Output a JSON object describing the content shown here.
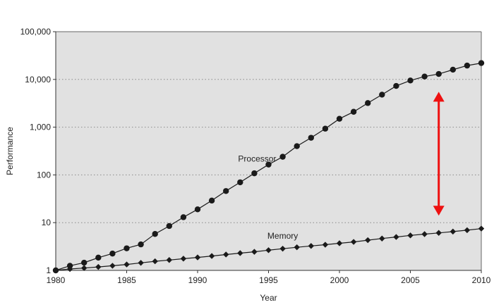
{
  "chart_data": {
    "type": "line",
    "xlabel": "Year",
    "ylabel": "Performance",
    "xlim": [
      1980,
      2010
    ],
    "ylim": [
      1,
      100000
    ],
    "y_scale": "log",
    "x_ticks": [
      "1980",
      "1985",
      "1990",
      "1995",
      "2000",
      "2005",
      "2010"
    ],
    "y_ticks": [
      "1",
      "10",
      "100",
      "1,000",
      "10,000",
      "100,000"
    ],
    "grid": "horizontal dotted",
    "background_color": "#e1e1e1",
    "line_color": "#1a1a1a",
    "x": [
      1980,
      1981,
      1982,
      1983,
      1984,
      1985,
      1986,
      1987,
      1988,
      1989,
      1990,
      1991,
      1992,
      1993,
      1994,
      1995,
      1996,
      1997,
      1998,
      1999,
      2000,
      2001,
      2002,
      2003,
      2004,
      2005,
      2006,
      2007,
      2008,
      2009,
      2010
    ],
    "series": [
      {
        "name": "Processor",
        "marker": "circle",
        "values": [
          1,
          1.25,
          1.45,
          1.85,
          2.25,
          2.9,
          3.5,
          5.8,
          8.5,
          13,
          19,
          29,
          46,
          70,
          108,
          165,
          240,
          400,
          600,
          930,
          1500,
          2100,
          3200,
          4800,
          7300,
          9500,
          11500,
          13000,
          16000,
          19500,
          22000
        ]
      },
      {
        "name": "Memory",
        "marker": "diamond",
        "values": [
          1,
          1.07,
          1.12,
          1.18,
          1.25,
          1.33,
          1.44,
          1.55,
          1.65,
          1.76,
          1.87,
          2.0,
          2.15,
          2.3,
          2.45,
          2.65,
          2.85,
          3.05,
          3.25,
          3.45,
          3.7,
          3.95,
          4.3,
          4.65,
          5.0,
          5.4,
          5.75,
          6.1,
          6.5,
          6.95,
          7.5
        ]
      }
    ],
    "annotation": {
      "type": "double-arrow",
      "color": "#ee1111",
      "x": 2007,
      "y_from": 5500,
      "y_to": 14
    }
  }
}
